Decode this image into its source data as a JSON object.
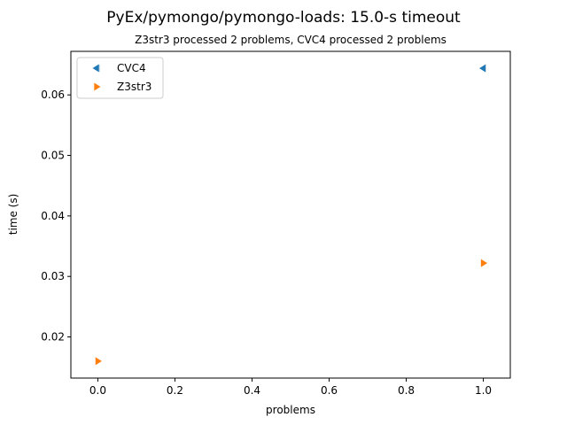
{
  "chart_data": {
    "type": "scatter",
    "title": "PyEx/pymongo/pymongo-loads: 15.0-s timeout",
    "subtitle": "Z3str3 processed 2 problems, CVC4 processed 2 problems",
    "xlabel": "problems",
    "ylabel": "time (s)",
    "xlim": [
      -0.07,
      1.07
    ],
    "ylim": [
      0.0132,
      0.0672
    ],
    "xticks": [
      0.0,
      0.2,
      0.4,
      0.6,
      0.8,
      1.0
    ],
    "xtick_labels": [
      "0.0",
      "0.2",
      "0.4",
      "0.6",
      "0.8",
      "1.0"
    ],
    "yticks": [
      0.02,
      0.03,
      0.04,
      0.05,
      0.06
    ],
    "ytick_labels": [
      "0.02",
      "0.03",
      "0.04",
      "0.05",
      "0.06"
    ],
    "grid": false,
    "legend_position": "top-left",
    "series": [
      {
        "name": "CVC4",
        "color": "#1f77b4",
        "marker": "triangle-left",
        "points": [
          {
            "x": 0.0,
            "y": 0.0644
          },
          {
            "x": 1.0,
            "y": 0.0644
          }
        ]
      },
      {
        "name": "Z3str3",
        "color": "#ff7f0e",
        "marker": "triangle-right",
        "points": [
          {
            "x": 0.0,
            "y": 0.016
          },
          {
            "x": 1.0,
            "y": 0.0322
          }
        ]
      }
    ]
  }
}
